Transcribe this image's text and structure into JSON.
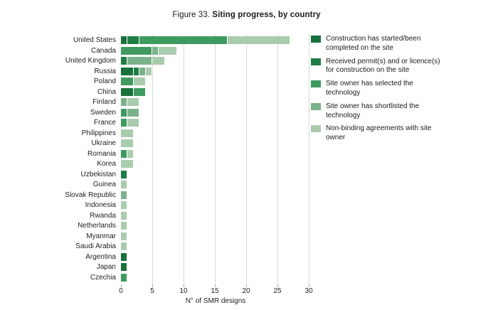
{
  "title": {
    "prefix": "Figure 33.",
    "main": "Siting progress, by country"
  },
  "colors": {
    "construction": "#17713a",
    "permit": "#1f7d46",
    "selected": "#3f9a5f",
    "shortlisted": "#7bb28c",
    "nonbinding": "#aaccae",
    "gridline": "#d9d9d9",
    "tick": "#a9a9a9",
    "text": "#1a1a1a"
  },
  "legend": [
    {
      "lines": [
        "Construction has started/been",
        "completed on the site"
      ],
      "color": "#17713a"
    },
    {
      "lines": [
        "Received permit(s) and or licence(s)",
        "for construction on the site"
      ],
      "color": "#1f7d46"
    },
    {
      "lines": [
        "Site owner has selected the",
        "technology"
      ],
      "color": "#3f9a5f"
    },
    {
      "lines": [
        "Site owner has shortlisted the",
        "technology"
      ],
      "color": "#7bb28c"
    },
    {
      "lines": [
        "Non-binding agreements with site",
        "owner"
      ],
      "color": "#aaccae"
    }
  ],
  "chart_data": {
    "type": "bar",
    "orientation": "horizontal",
    "stacked": true,
    "grid": true,
    "legend_position": "right",
    "xlabel": "N° of SMR designs",
    "xlim": [
      0,
      30
    ],
    "xticks": [
      0,
      5,
      10,
      15,
      20,
      25,
      30
    ],
    "categories": [
      "United States",
      "Canada",
      "United Kingdom",
      "Russia",
      "Poland",
      "China",
      "Finland",
      "Sweden",
      "France",
      "Philippines",
      "Ukraine",
      "Romania",
      "Korea",
      "Uzbekistan",
      "Guinea",
      "Slovak Republic",
      "Indonesia",
      "Rwanda",
      "Netherlands",
      "Myanmar",
      "Saudi Arabia",
      "Argentina",
      "Japan",
      "Czechia"
    ],
    "series": [
      {
        "name": "Construction has started/been completed on the site",
        "color": "#17713a",
        "values": [
          1,
          0,
          0,
          2,
          0,
          2,
          0,
          0,
          0,
          0,
          0,
          0,
          0,
          0,
          0,
          0,
          0,
          0,
          0,
          0,
          0,
          1,
          1,
          0
        ]
      },
      {
        "name": "Received permit(s) and or licence(s) for construction on the site",
        "color": "#1f7d46",
        "values": [
          2,
          0,
          1,
          1,
          0,
          0,
          0,
          0,
          0,
          0,
          0,
          0,
          0,
          1,
          0,
          0,
          0,
          0,
          0,
          0,
          0,
          0,
          0,
          0
        ]
      },
      {
        "name": "Site owner has selected the technology",
        "color": "#3f9a5f",
        "values": [
          14,
          5,
          0,
          0,
          2,
          2,
          0,
          1,
          1,
          0,
          0,
          1,
          0,
          0,
          0,
          0,
          0,
          0,
          0,
          0,
          0,
          0,
          0,
          1
        ]
      },
      {
        "name": "Site owner has shortlisted the technology",
        "color": "#7bb28c",
        "values": [
          0,
          1,
          4,
          1,
          0,
          0,
          1,
          2,
          0,
          0,
          0,
          0,
          0,
          0,
          0,
          1,
          0,
          0,
          0,
          0,
          0,
          0,
          0,
          0
        ]
      },
      {
        "name": "Non-binding agreements with site owner",
        "color": "#aaccae",
        "values": [
          10,
          3,
          2,
          1,
          2,
          0,
          2,
          0,
          2,
          2,
          2,
          1,
          2,
          0,
          1,
          0,
          1,
          1,
          1,
          1,
          1,
          0,
          0,
          0
        ]
      }
    ],
    "totals": [
      27,
      9,
      7,
      5,
      4,
      4,
      3,
      3,
      3,
      2,
      2,
      2,
      2,
      1,
      1,
      1,
      1,
      1,
      1,
      1,
      1,
      1,
      1,
      1
    ]
  }
}
